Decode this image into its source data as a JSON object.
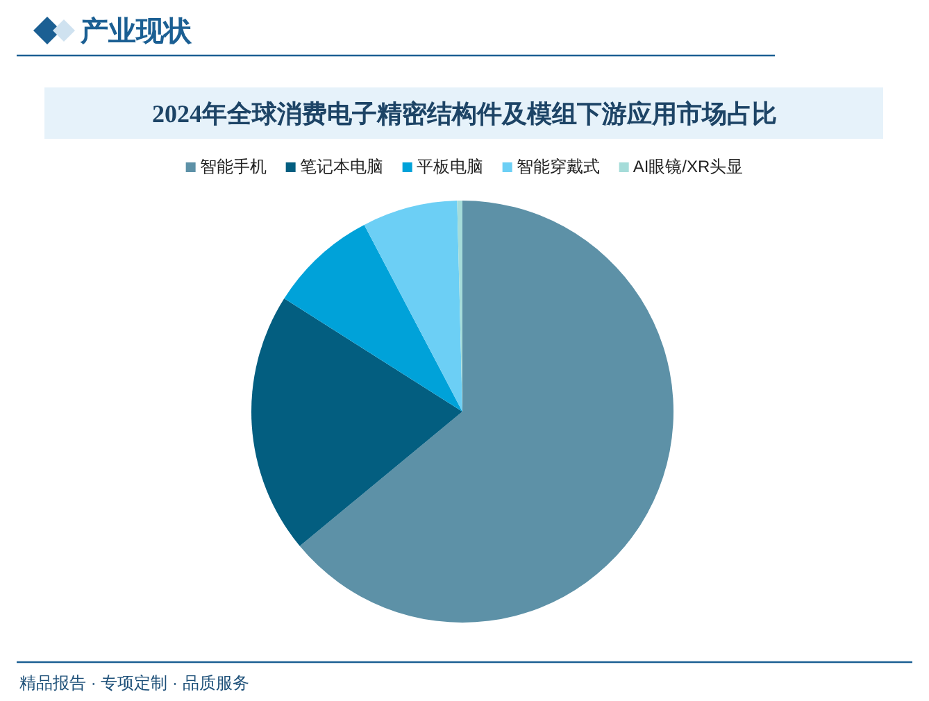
{
  "chart_data": {
    "type": "pie",
    "title": "2024年全球消费电子精密结构件及模组下游应用市场占比",
    "categories": [
      "智能手机",
      "笔记本电脑",
      "平板电脑",
      "智能穿戴式",
      "AI眼镜/XR头显"
    ],
    "values": [
      64.0,
      20.0,
      8.3,
      7.3,
      0.4
    ],
    "colors": [
      "#5d91a7",
      "#035e80",
      "#00a2d9",
      "#6ccff5",
      "#a5dcd9"
    ],
    "legend": "top",
    "annotations": [
      "产业现状",
      "精品报告 · 专项定制 · 品质服务"
    ]
  }
}
